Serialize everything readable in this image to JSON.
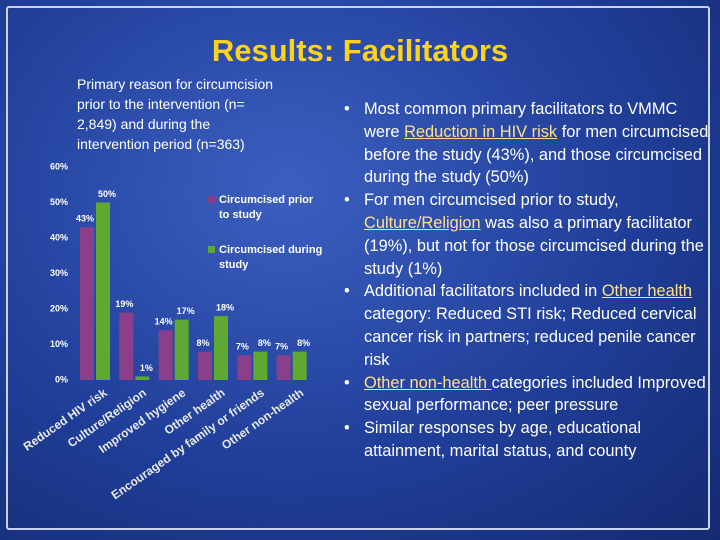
{
  "slide": {
    "title": "Results: Facilitators",
    "bullets": [
      [
        {
          "text": "Most common primary facilitators to VMMC were "
        },
        {
          "text": "Reduction in HIV risk",
          "underline": true
        },
        {
          "text": " for men circumcised before the study (43%), and those circumcised during the study (50%)"
        }
      ],
      [
        {
          "text": "For men circumcised prior to study, "
        },
        {
          "text": "Culture/Religion",
          "underline": true
        },
        {
          "text": " was also a primary facilitator (19%), but not for those circumcised during the study (1%)"
        }
      ],
      [
        {
          "text": "Additional facilitators included in "
        },
        {
          "text": "Other health ",
          "underline": true
        },
        {
          "text": "category: Reduced STI risk; Reduced cervical cancer risk in partners; reduced penile cancer risk"
        }
      ],
      [
        {
          "text": "Other non-health ",
          "underline": true
        },
        {
          "text": "categories included Improved sexual performance; peer pressure"
        }
      ],
      [
        {
          "text": "Similar responses by age, educational attainment, marital status, and county"
        }
      ]
    ]
  },
  "chart_data": {
    "type": "bar",
    "title": "Primary reason for circumcision prior to the intervention (n= 2,849) and during the intervention period (n=363)",
    "categories": [
      "Reduced HIV risk",
      "Culture/Religion",
      "Improved hygiene",
      "Other health",
      "Encouraged by family or friends",
      "Other non-health"
    ],
    "series": [
      {
        "name": "Circumcised prior to study",
        "color": "#8b3f8b",
        "values": [
          43,
          19,
          14,
          8,
          7,
          7
        ],
        "value_labels": [
          "43%",
          "19%",
          "14%",
          "8%",
          "7%",
          "7%"
        ]
      },
      {
        "name": "Circumcised during study",
        "color": "#5fa832",
        "values": [
          50,
          1,
          17,
          18,
          8,
          8
        ],
        "value_labels": [
          "50%",
          "1%",
          "17%",
          "18%",
          "8%",
          "8%"
        ]
      }
    ],
    "ylim": [
      0,
      60
    ],
    "yticks": [
      {
        "value": 0,
        "label": "0%"
      },
      {
        "value": 10,
        "label": "10%"
      },
      {
        "value": 20,
        "label": "20%"
      },
      {
        "value": 30,
        "label": "30%"
      },
      {
        "value": 40,
        "label": "40%"
      },
      {
        "value": 50,
        "label": "50%"
      },
      {
        "value": 60,
        "label": "60%"
      }
    ],
    "grid": false,
    "legend": "top-right"
  }
}
